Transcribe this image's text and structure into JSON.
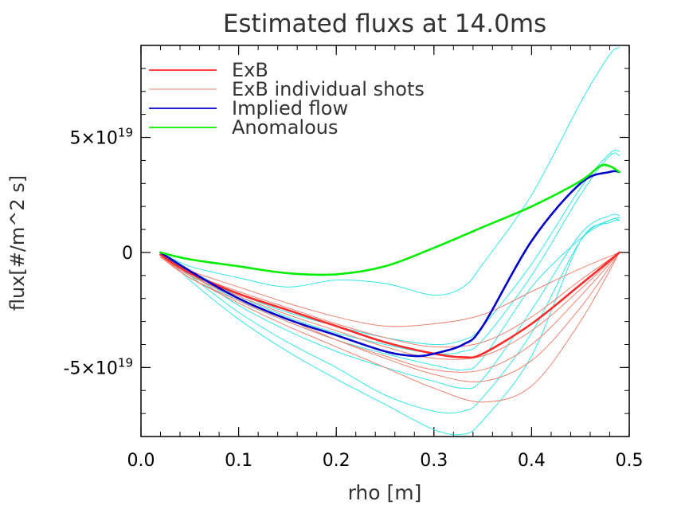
{
  "chart_data": {
    "type": "line",
    "title": "Estimated fluxs at  14.0ms",
    "xlabel": "rho [m]",
    "ylabel": "flux[#/m^2 s]",
    "xlim": [
      0.0,
      0.5
    ],
    "ylim": [
      -8e+19,
      9e+19
    ],
    "grid": false,
    "legend_position": "top-left",
    "x_ticks": [
      {
        "value": 0.0,
        "label": "0.0"
      },
      {
        "value": 0.1,
        "label": "0.1"
      },
      {
        "value": 0.2,
        "label": "0.2"
      },
      {
        "value": 0.3,
        "label": "0.3"
      },
      {
        "value": 0.4,
        "label": "0.4"
      },
      {
        "value": 0.5,
        "label": "0.5"
      }
    ],
    "y_ticks": [
      {
        "value": 5e+19,
        "label": "5×10",
        "exp": "19"
      },
      {
        "value": 0,
        "label": "0",
        "exp": ""
      },
      {
        "value": -5e+19,
        "label": "-5×10",
        "exp": "19"
      }
    ],
    "legend": [
      {
        "name": "ExB",
        "color": "#ff2a2a",
        "width": 1.8
      },
      {
        "name": "ExB individual shots",
        "color": "#f08070",
        "width": 1.0
      },
      {
        "name": "Implied flow",
        "color": "#0000cc",
        "width": 1.8
      },
      {
        "name": "Anomalous",
        "color": "#00ee00",
        "width": 1.8
      }
    ],
    "series": [
      {
        "name": "",
        "color": "#33e6e6",
        "width": 1.0,
        "x": [
          0.02,
          0.05,
          0.1,
          0.15,
          0.2,
          0.25,
          0.3,
          0.33,
          0.35,
          0.4,
          0.45,
          0.48,
          0.49
        ],
        "y": [
          0,
          -6e+18,
          -1.1e+19,
          -1.5e+19,
          -1.2e+19,
          -1.35e+19,
          -1.85e+19,
          -1.5e+19,
          -5e+18,
          2.5e+19,
          6.5e+19,
          8.6e+19,
          8.9e+19
        ]
      },
      {
        "name": "",
        "color": "#33e6e6",
        "width": 1.0,
        "x": [
          0.02,
          0.05,
          0.1,
          0.15,
          0.2,
          0.25,
          0.3,
          0.33,
          0.35,
          0.4,
          0.45,
          0.48,
          0.49
        ],
        "y": [
          0,
          -8e+18,
          -1.8e+19,
          -2.6e+19,
          -3.2e+19,
          -3.7e+19,
          -4e+19,
          -3.8e+19,
          -3.2e+19,
          -5e+18,
          2.8e+19,
          4.3e+19,
          4.4e+19
        ]
      },
      {
        "name": "",
        "color": "#33e6e6",
        "width": 1.0,
        "x": [
          0.02,
          0.05,
          0.1,
          0.15,
          0.2,
          0.25,
          0.3,
          0.33,
          0.35,
          0.4,
          0.45,
          0.48,
          0.49
        ],
        "y": [
          0,
          -8e+18,
          -1.9e+19,
          -2.8e+19,
          -3.5e+19,
          -4e+19,
          -4.4e+19,
          -4.3e+19,
          -3.8e+19,
          -1e+19,
          2.5e+19,
          4.2e+19,
          4.2e+19
        ]
      },
      {
        "name": "",
        "color": "#33e6e6",
        "width": 1.0,
        "x": [
          0.02,
          0.05,
          0.1,
          0.15,
          0.2,
          0.25,
          0.3,
          0.33,
          0.35,
          0.4,
          0.45,
          0.48,
          0.49
        ],
        "y": [
          0,
          -9e+18,
          -2.1e+19,
          -3e+19,
          -3.8e+19,
          -4.4e+19,
          -4.9e+19,
          -5.1e+19,
          -4.6e+19,
          -1.5e+19,
          6e+18,
          1.4e+19,
          1.5e+19
        ]
      },
      {
        "name": "",
        "color": "#33e6e6",
        "width": 1.0,
        "x": [
          0.02,
          0.05,
          0.1,
          0.15,
          0.2,
          0.25,
          0.3,
          0.33,
          0.35,
          0.4,
          0.45,
          0.48,
          0.49
        ],
        "y": [
          0,
          -9e+18,
          -2.3e+19,
          -3.4e+19,
          -4.3e+19,
          -5e+19,
          -5.6e+19,
          -5.9e+19,
          -5.5e+19,
          -2.5e+19,
          8e+18,
          1.6e+19,
          1.6e+19
        ]
      },
      {
        "name": "",
        "color": "#33e6e6",
        "width": 1.0,
        "x": [
          0.02,
          0.05,
          0.1,
          0.15,
          0.2,
          0.25,
          0.3,
          0.33,
          0.35,
          0.4,
          0.45,
          0.48,
          0.49
        ],
        "y": [
          0,
          -1e+19,
          -2.6e+19,
          -3.9e+19,
          -5e+19,
          -6.2e+19,
          -6.9e+19,
          -6.9e+19,
          -6.3e+19,
          -3.5e+19,
          5e+18,
          1.4e+19,
          1.4e+19
        ]
      },
      {
        "name": "",
        "color": "#33e6e6",
        "width": 1.0,
        "x": [
          0.02,
          0.05,
          0.1,
          0.15,
          0.2,
          0.25,
          0.3,
          0.33,
          0.35,
          0.4,
          0.45,
          0.48,
          0.49
        ],
        "y": [
          0,
          -1.2e+19,
          -2.9e+19,
          -4.3e+19,
          -5.5e+19,
          -6.6e+19,
          -7.7e+19,
          -7.9e+19,
          -7.3e+19,
          -4.5e+19,
          5e+18,
          1.3e+19,
          1.4e+19
        ]
      },
      {
        "name": "",
        "color": "#f08070",
        "width": 1.0,
        "x": [
          0.02,
          0.05,
          0.1,
          0.15,
          0.2,
          0.25,
          0.3,
          0.35,
          0.4,
          0.45,
          0.49
        ],
        "y": [
          -2e+18,
          -8e+18,
          -1.5e+19,
          -2.2e+19,
          -2.8e+19,
          -3.2e+19,
          -3.1e+19,
          -2.7e+19,
          -1.7e+19,
          -7e+18,
          0
        ]
      },
      {
        "name": "",
        "color": "#f08070",
        "width": 1.0,
        "x": [
          0.02,
          0.05,
          0.1,
          0.15,
          0.2,
          0.25,
          0.3,
          0.35,
          0.4,
          0.45,
          0.49
        ],
        "y": [
          -2e+18,
          -9e+18,
          -1.7e+19,
          -2.4e+19,
          -3.1e+19,
          -3.7e+19,
          -4.1e+19,
          -3.9e+19,
          -2.8e+19,
          -1.2e+19,
          0
        ]
      },
      {
        "name": "",
        "color": "#f08070",
        "width": 1.0,
        "x": [
          0.02,
          0.05,
          0.1,
          0.15,
          0.2,
          0.25,
          0.3,
          0.35,
          0.4,
          0.45,
          0.49
        ],
        "y": [
          -2e+18,
          -1e+19,
          -1.9e+19,
          -2.7e+19,
          -3.4e+19,
          -4.1e+19,
          -4.6e+19,
          -4.5e+19,
          -3.4e+19,
          -1.6e+19,
          0
        ]
      },
      {
        "name": "",
        "color": "#f08070",
        "width": 1.0,
        "x": [
          0.02,
          0.05,
          0.1,
          0.15,
          0.2,
          0.25,
          0.3,
          0.35,
          0.4,
          0.45,
          0.49
        ],
        "y": [
          -2e+18,
          -1.1e+19,
          -2.1e+19,
          -3e+19,
          -3.8e+19,
          -4.5e+19,
          -5.1e+19,
          -5.1e+19,
          -4e+19,
          -1.9e+19,
          0
        ]
      },
      {
        "name": "",
        "color": "#f08070",
        "width": 1.0,
        "x": [
          0.02,
          0.05,
          0.1,
          0.15,
          0.2,
          0.25,
          0.3,
          0.35,
          0.4,
          0.45,
          0.49
        ],
        "y": [
          -2e+18,
          -1e+19,
          -2e+19,
          -2.9e+19,
          -3.8e+19,
          -4.6e+19,
          -5.3e+19,
          -5.6e+19,
          -4.7e+19,
          -2.4e+19,
          0
        ]
      },
      {
        "name": "",
        "color": "#f08070",
        "width": 1.0,
        "x": [
          0.02,
          0.05,
          0.1,
          0.15,
          0.2,
          0.25,
          0.3,
          0.35,
          0.4,
          0.45,
          0.49
        ],
        "y": [
          -2e+18,
          -1.1e+19,
          -2.2e+19,
          -3.2e+19,
          -4.1e+19,
          -5e+19,
          -5.9e+19,
          -6.5e+19,
          -5.8e+19,
          -3e+19,
          0
        ]
      },
      {
        "name": "ExB",
        "color": "#ff2a2a",
        "width": 2.6,
        "x": [
          0.02,
          0.05,
          0.1,
          0.15,
          0.2,
          0.25,
          0.3,
          0.33,
          0.35,
          0.4,
          0.45,
          0.49
        ],
        "y": [
          -1e+18,
          -9e+18,
          -1.8e+19,
          -2.5e+19,
          -3.2e+19,
          -3.9e+19,
          -4.4e+19,
          -4.55e+19,
          -4.4e+19,
          -3.1e+19,
          -1.4e+19,
          0
        ]
      },
      {
        "name": "Implied flow",
        "color": "#0000cc",
        "width": 2.6,
        "x": [
          0.02,
          0.05,
          0.1,
          0.15,
          0.2,
          0.25,
          0.28,
          0.3,
          0.33,
          0.35,
          0.4,
          0.45,
          0.48,
          0.49
        ],
        "y": [
          0,
          -8e+18,
          -2e+19,
          -2.9e+19,
          -3.6e+19,
          -4.3e+19,
          -4.5e+19,
          -4.4e+19,
          -4e+19,
          -3.2e+19,
          5e+18,
          3e+19,
          3.5e+19,
          3.5e+19
        ]
      },
      {
        "name": "Anomalous",
        "color": "#00ee00",
        "width": 2.6,
        "x": [
          0.02,
          0.05,
          0.1,
          0.15,
          0.2,
          0.25,
          0.3,
          0.35,
          0.4,
          0.45,
          0.47,
          0.48,
          0.49
        ],
        "y": [
          0,
          -3e+18,
          -6e+18,
          -9e+18,
          -9.5e+18,
          -6e+18,
          2e+18,
          1.1e+19,
          2e+19,
          3.1e+19,
          3.75e+19,
          3.75e+19,
          3.5e+19
        ]
      }
    ]
  }
}
